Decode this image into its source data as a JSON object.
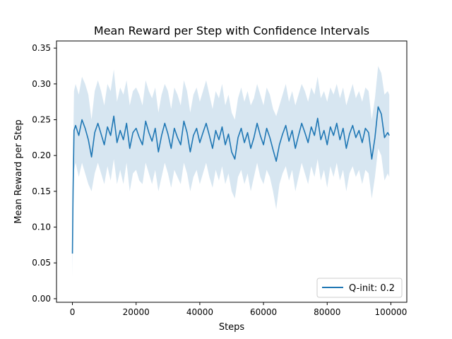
{
  "chart_data": {
    "type": "line",
    "title": "Mean Reward per Step with Confidence Intervals",
    "xlabel": "Steps",
    "ylabel": "Mean Reward per Step",
    "xlim": [
      -5000,
      105000
    ],
    "ylim": [
      -0.005,
      0.36
    ],
    "xticks": [
      0,
      20000,
      40000,
      60000,
      80000,
      100000
    ],
    "yticks": [
      0.0,
      0.05,
      0.1,
      0.15,
      0.2,
      0.25,
      0.3,
      0.35
    ],
    "grid": false,
    "legend_position": "lower-right",
    "series": [
      {
        "name": "Q-init: 0.2",
        "color": "#1f77b4",
        "band_color": "#1f77b4",
        "x": [
          0,
          200,
          500,
          1000,
          2000,
          3000,
          4000,
          5000,
          6000,
          7000,
          8000,
          9000,
          10000,
          11000,
          12000,
          13000,
          14000,
          15000,
          16000,
          17000,
          18000,
          19000,
          20000,
          21000,
          22000,
          23000,
          24000,
          25000,
          26000,
          27000,
          28000,
          29000,
          30000,
          31000,
          32000,
          33000,
          34000,
          35000,
          36000,
          37000,
          38000,
          39000,
          40000,
          41000,
          42000,
          43000,
          44000,
          45000,
          46000,
          47000,
          48000,
          49000,
          50000,
          51000,
          52000,
          53000,
          54000,
          55000,
          56000,
          57000,
          58000,
          59000,
          60000,
          61000,
          62000,
          63000,
          64000,
          65000,
          66000,
          67000,
          68000,
          69000,
          70000,
          71000,
          72000,
          73000,
          74000,
          75000,
          76000,
          77000,
          78000,
          79000,
          80000,
          81000,
          82000,
          83000,
          84000,
          85000,
          86000,
          87000,
          88000,
          89000,
          90000,
          91000,
          92000,
          93000,
          94000,
          95000,
          96000,
          97000,
          98000,
          99000,
          99500
        ],
        "y": [
          0.063,
          0.15,
          0.235,
          0.242,
          0.228,
          0.25,
          0.238,
          0.222,
          0.198,
          0.232,
          0.245,
          0.23,
          0.215,
          0.24,
          0.228,
          0.255,
          0.218,
          0.235,
          0.222,
          0.245,
          0.21,
          0.232,
          0.238,
          0.225,
          0.215,
          0.248,
          0.232,
          0.22,
          0.238,
          0.205,
          0.228,
          0.245,
          0.23,
          0.21,
          0.238,
          0.225,
          0.215,
          0.248,
          0.232,
          0.205,
          0.228,
          0.238,
          0.218,
          0.232,
          0.245,
          0.228,
          0.21,
          0.235,
          0.222,
          0.24,
          0.215,
          0.23,
          0.205,
          0.195,
          0.225,
          0.238,
          0.218,
          0.232,
          0.21,
          0.225,
          0.245,
          0.228,
          0.215,
          0.238,
          0.225,
          0.208,
          0.192,
          0.215,
          0.23,
          0.242,
          0.22,
          0.235,
          0.21,
          0.228,
          0.245,
          0.232,
          0.218,
          0.24,
          0.228,
          0.252,
          0.222,
          0.235,
          0.215,
          0.24,
          0.228,
          0.245,
          0.222,
          0.238,
          0.21,
          0.23,
          0.242,
          0.225,
          0.235,
          0.218,
          0.238,
          0.232,
          0.195,
          0.225,
          0.268,
          0.258,
          0.225,
          0.232,
          0.228
        ],
        "lower": [
          0.03,
          0.1,
          0.18,
          0.19,
          0.17,
          0.19,
          0.175,
          0.16,
          0.15,
          0.175,
          0.19,
          0.175,
          0.16,
          0.185,
          0.165,
          0.195,
          0.16,
          0.18,
          0.16,
          0.19,
          0.15,
          0.175,
          0.18,
          0.165,
          0.16,
          0.19,
          0.175,
          0.16,
          0.18,
          0.15,
          0.17,
          0.19,
          0.175,
          0.155,
          0.18,
          0.17,
          0.16,
          0.19,
          0.175,
          0.15,
          0.17,
          0.18,
          0.16,
          0.175,
          0.19,
          0.17,
          0.155,
          0.18,
          0.165,
          0.185,
          0.16,
          0.175,
          0.15,
          0.14,
          0.17,
          0.18,
          0.16,
          0.175,
          0.15,
          0.17,
          0.19,
          0.17,
          0.16,
          0.18,
          0.17,
          0.15,
          0.125,
          0.16,
          0.175,
          0.185,
          0.165,
          0.18,
          0.15,
          0.17,
          0.19,
          0.175,
          0.16,
          0.185,
          0.17,
          0.195,
          0.165,
          0.18,
          0.155,
          0.185,
          0.17,
          0.19,
          0.165,
          0.18,
          0.15,
          0.175,
          0.185,
          0.17,
          0.18,
          0.16,
          0.18,
          0.175,
          0.14,
          0.17,
          0.21,
          0.2,
          0.165,
          0.175,
          0.17
        ],
        "upper": [
          0.1,
          0.2,
          0.29,
          0.3,
          0.285,
          0.31,
          0.3,
          0.285,
          0.25,
          0.29,
          0.305,
          0.29,
          0.27,
          0.3,
          0.29,
          0.32,
          0.275,
          0.295,
          0.285,
          0.305,
          0.27,
          0.29,
          0.295,
          0.285,
          0.27,
          0.305,
          0.29,
          0.28,
          0.295,
          0.26,
          0.285,
          0.3,
          0.29,
          0.265,
          0.295,
          0.285,
          0.27,
          0.305,
          0.29,
          0.26,
          0.285,
          0.295,
          0.275,
          0.29,
          0.305,
          0.285,
          0.265,
          0.29,
          0.28,
          0.3,
          0.27,
          0.285,
          0.26,
          0.25,
          0.28,
          0.295,
          0.275,
          0.29,
          0.27,
          0.28,
          0.3,
          0.285,
          0.27,
          0.295,
          0.285,
          0.265,
          0.255,
          0.27,
          0.285,
          0.3,
          0.275,
          0.29,
          0.27,
          0.285,
          0.3,
          0.29,
          0.275,
          0.295,
          0.285,
          0.31,
          0.28,
          0.29,
          0.275,
          0.295,
          0.285,
          0.3,
          0.28,
          0.295,
          0.27,
          0.285,
          0.3,
          0.28,
          0.29,
          0.275,
          0.295,
          0.29,
          0.25,
          0.28,
          0.325,
          0.315,
          0.285,
          0.29,
          0.285
        ]
      }
    ]
  }
}
